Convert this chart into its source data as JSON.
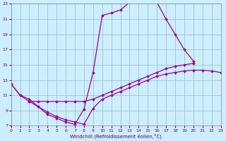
{
  "bg_color": "#cceeff",
  "line_color": "#990099",
  "grid_color": "#99bbbb",
  "xlabel": "Windchill (Refroidissement éolien,°C)",
  "xlim": [
    0,
    23
  ],
  "ylim": [
    7,
    23
  ],
  "yticks": [
    7,
    9,
    11,
    13,
    15,
    17,
    19,
    21,
    23
  ],
  "xticks": [
    0,
    1,
    2,
    3,
    4,
    5,
    6,
    7,
    8,
    9,
    10,
    11,
    12,
    13,
    14,
    15,
    16,
    17,
    18,
    19,
    20,
    21,
    22,
    23
  ],
  "curve1_x": [
    0,
    1,
    2,
    3,
    4,
    5,
    6,
    7,
    8,
    9,
    10,
    11,
    12,
    13,
    14,
    15,
    16,
    17,
    18,
    19,
    20
  ],
  "curve1_y": [
    12.5,
    11.0,
    10.5,
    9.5,
    8.5,
    8.0,
    7.5,
    7.2,
    9.2,
    14.0,
    21.5,
    21.8,
    22.2,
    23.2,
    23.4,
    23.4,
    23.2,
    21.0,
    19.0,
    17.0,
    15.5
  ],
  "curve2_x": [
    2,
    3,
    4,
    5,
    6,
    7,
    8,
    9,
    10,
    11,
    12,
    13,
    14,
    15,
    16,
    17,
    18,
    19,
    20,
    21,
    22,
    23
  ],
  "curve2_y": [
    10.2,
    9.5,
    8.8,
    8.2,
    7.8,
    7.5,
    7.2,
    9.3,
    10.5,
    11.0,
    11.5,
    12.0,
    12.5,
    13.0,
    13.5,
    13.8,
    14.0,
    14.2,
    14.3,
    14.3,
    14.2,
    14.0
  ],
  "curve3_x": [
    0,
    1,
    2,
    3,
    4,
    5,
    6,
    7,
    8,
    9,
    10,
    11,
    12,
    13,
    14,
    15,
    16,
    17,
    18,
    19,
    20
  ],
  "curve3_y": [
    12.5,
    11.0,
    10.2,
    10.2,
    10.2,
    10.2,
    10.2,
    10.2,
    10.2,
    10.5,
    11.0,
    11.5,
    12.0,
    12.5,
    13.0,
    13.5,
    14.0,
    14.5,
    14.8,
    15.0,
    15.2
  ]
}
